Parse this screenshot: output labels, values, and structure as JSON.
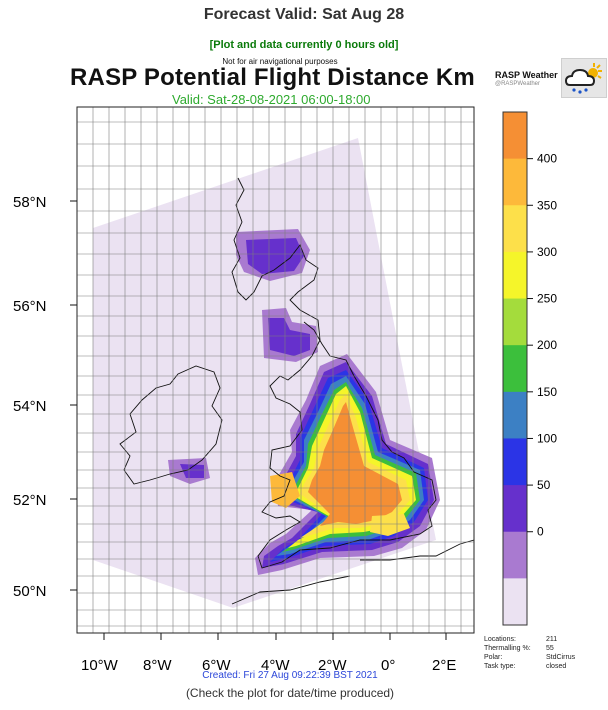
{
  "page": {
    "title": "Forecast Valid: Sat Aug 28",
    "age_note": "[Plot and data currently 0 hours old]",
    "nav_note": "Not for air navigational purposes",
    "created": "Created: Fri 27 Aug 09:22:39 BST 2021",
    "check_note": "(Check the plot for date/time produced)"
  },
  "plot": {
    "title": "RASP Potential Flight Distance Km",
    "valid": "Valid: Sat-28-08-2021 06:00-18:00"
  },
  "brand": {
    "name": "RASP Weather",
    "handle": "@RASPWeather",
    "logo_icon": "cloud-sun-rain-icon"
  },
  "axes": {
    "lat_labels": [
      "58°N",
      "56°N",
      "54°N",
      "52°N",
      "50°N"
    ],
    "lon_labels": [
      "10°W",
      "8°W",
      "6°W",
      "4°W",
      "2°W",
      "0°",
      "2°E"
    ]
  },
  "colorbar": {
    "ticks": [
      "400",
      "350",
      "300",
      "250",
      "200",
      "150",
      "100",
      "50",
      "0"
    ],
    "colors": [
      "#f58f34",
      "#fdb93a",
      "#fde04a",
      "#f5f52a",
      "#a4dc3c",
      "#3cbf3c",
      "#3c80c4",
      "#2b34e6",
      "#6630cc",
      "#a97ad0",
      "#ebe2f2"
    ]
  },
  "info": {
    "labels": [
      "Locations:",
      "Thermalling %:",
      "Polar:",
      "Task type:"
    ],
    "values": [
      "211",
      "55",
      "StdCirrus",
      "closed"
    ]
  }
}
